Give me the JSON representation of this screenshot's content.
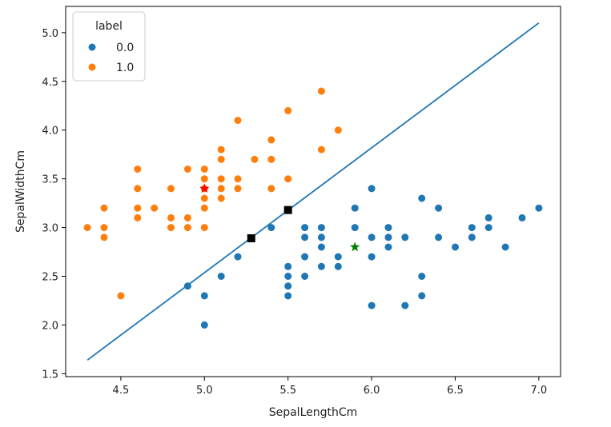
{
  "chart_data": {
    "type": "scatter",
    "title": "",
    "xlabel": "SepalLengthCm",
    "ylabel": "SepalWidthCm",
    "xlim": [
      4.17,
      7.13
    ],
    "ylim": [
      1.47,
      5.27
    ],
    "xticks": [
      4.5,
      5.0,
      5.5,
      6.0,
      6.5,
      7.0
    ],
    "yticks": [
      1.5,
      2.0,
      2.5,
      3.0,
      3.5,
      4.0,
      4.5,
      5.0
    ],
    "xtick_labels": [
      "4.5",
      "5.0",
      "5.5",
      "6.0",
      "6.5",
      "7.0"
    ],
    "ytick_labels": [
      "1.5",
      "2.0",
      "2.5",
      "3.0",
      "3.5",
      "4.0",
      "4.5",
      "5.0"
    ],
    "grid": false,
    "legend": {
      "title": "label",
      "placement": "top-left",
      "entries": [
        {
          "label": "0.0",
          "color": "#1f77b4"
        },
        {
          "label": "1.0",
          "color": "#ff7f0e"
        }
      ]
    },
    "series": [
      {
        "name": "0.0",
        "color": "#1f77b4",
        "points": [
          [
            7.0,
            3.2
          ],
          [
            6.4,
            3.2
          ],
          [
            6.9,
            3.1
          ],
          [
            5.5,
            2.3
          ],
          [
            6.5,
            2.8
          ],
          [
            5.7,
            2.8
          ],
          [
            6.3,
            3.3
          ],
          [
            4.9,
            2.4
          ],
          [
            6.6,
            2.9
          ],
          [
            5.2,
            2.7
          ],
          [
            5.0,
            2.0
          ],
          [
            5.9,
            3.0
          ],
          [
            6.0,
            2.2
          ],
          [
            6.1,
            2.9
          ],
          [
            5.6,
            2.9
          ],
          [
            6.7,
            3.1
          ],
          [
            5.6,
            3.0
          ],
          [
            5.8,
            2.7
          ],
          [
            6.2,
            2.2
          ],
          [
            5.6,
            2.5
          ],
          [
            5.9,
            3.2
          ],
          [
            6.1,
            2.8
          ],
          [
            6.3,
            2.5
          ],
          [
            6.4,
            2.9
          ],
          [
            6.6,
            3.0
          ],
          [
            6.8,
            2.8
          ],
          [
            6.7,
            3.0
          ],
          [
            6.0,
            2.9
          ],
          [
            5.7,
            2.6
          ],
          [
            5.5,
            2.4
          ],
          [
            5.5,
            2.5
          ],
          [
            5.8,
            2.6
          ],
          [
            5.4,
            3.0
          ],
          [
            6.0,
            3.4
          ],
          [
            6.3,
            2.3
          ],
          [
            5.6,
            3.0
          ],
          [
            5.5,
            2.6
          ],
          [
            6.1,
            3.0
          ],
          [
            5.0,
            2.3
          ],
          [
            5.6,
            2.7
          ],
          [
            5.7,
            3.0
          ],
          [
            5.7,
            2.9
          ],
          [
            6.2,
            2.9
          ],
          [
            5.1,
            2.5
          ],
          [
            5.7,
            2.8
          ],
          [
            6.0,
            2.7
          ],
          [
            5.5,
            2.5
          ],
          [
            5.5,
            2.6
          ]
        ]
      },
      {
        "name": "1.0",
        "color": "#ff7f0e",
        "points": [
          [
            5.1,
            3.5
          ],
          [
            4.9,
            3.0
          ],
          [
            4.7,
            3.2
          ],
          [
            4.6,
            3.1
          ],
          [
            5.0,
            3.6
          ],
          [
            5.4,
            3.9
          ],
          [
            4.6,
            3.4
          ],
          [
            5.0,
            3.4
          ],
          [
            4.4,
            2.9
          ],
          [
            4.9,
            3.1
          ],
          [
            5.4,
            3.7
          ],
          [
            4.8,
            3.4
          ],
          [
            4.8,
            3.0
          ],
          [
            4.3,
            3.0
          ],
          [
            5.8,
            4.0
          ],
          [
            5.7,
            4.4
          ],
          [
            5.4,
            3.9
          ],
          [
            5.1,
            3.5
          ],
          [
            5.7,
            3.8
          ],
          [
            5.1,
            3.8
          ],
          [
            5.4,
            3.4
          ],
          [
            5.1,
            3.7
          ],
          [
            4.6,
            3.6
          ],
          [
            5.1,
            3.3
          ],
          [
            4.8,
            3.4
          ],
          [
            5.0,
            3.0
          ],
          [
            5.0,
            3.4
          ],
          [
            5.2,
            3.5
          ],
          [
            5.2,
            3.4
          ],
          [
            4.7,
            3.2
          ],
          [
            4.8,
            3.1
          ],
          [
            5.4,
            3.4
          ],
          [
            5.2,
            4.1
          ],
          [
            5.5,
            4.2
          ],
          [
            4.9,
            3.1
          ],
          [
            5.0,
            3.2
          ],
          [
            5.5,
            3.5
          ],
          [
            4.9,
            3.6
          ],
          [
            4.4,
            3.0
          ],
          [
            5.1,
            3.4
          ],
          [
            5.0,
            3.5
          ],
          [
            4.5,
            2.3
          ],
          [
            4.4,
            3.2
          ],
          [
            5.0,
            3.5
          ],
          [
            5.1,
            3.8
          ],
          [
            4.8,
            3.0
          ],
          [
            5.1,
            3.8
          ],
          [
            4.6,
            3.2
          ],
          [
            5.3,
            3.7
          ],
          [
            5.0,
            3.3
          ]
        ]
      }
    ],
    "decision_line": {
      "type": "line",
      "color": "#1f77b4",
      "x": [
        4.3,
        7.0
      ],
      "y": [
        1.64,
        5.1
      ]
    },
    "highlight_points": [
      {
        "name": "support-vector",
        "marker": "square",
        "color": "#000000",
        "x": 5.28,
        "y": 2.89
      },
      {
        "name": "support-vector",
        "marker": "square",
        "color": "#000000",
        "x": 5.5,
        "y": 3.18
      },
      {
        "name": "class-1-centroid",
        "marker": "star",
        "color": "#ff0000",
        "x": 5.0,
        "y": 3.4
      },
      {
        "name": "class-0-centroid",
        "marker": "star",
        "color": "#008000",
        "x": 5.9,
        "y": 2.8
      }
    ]
  }
}
